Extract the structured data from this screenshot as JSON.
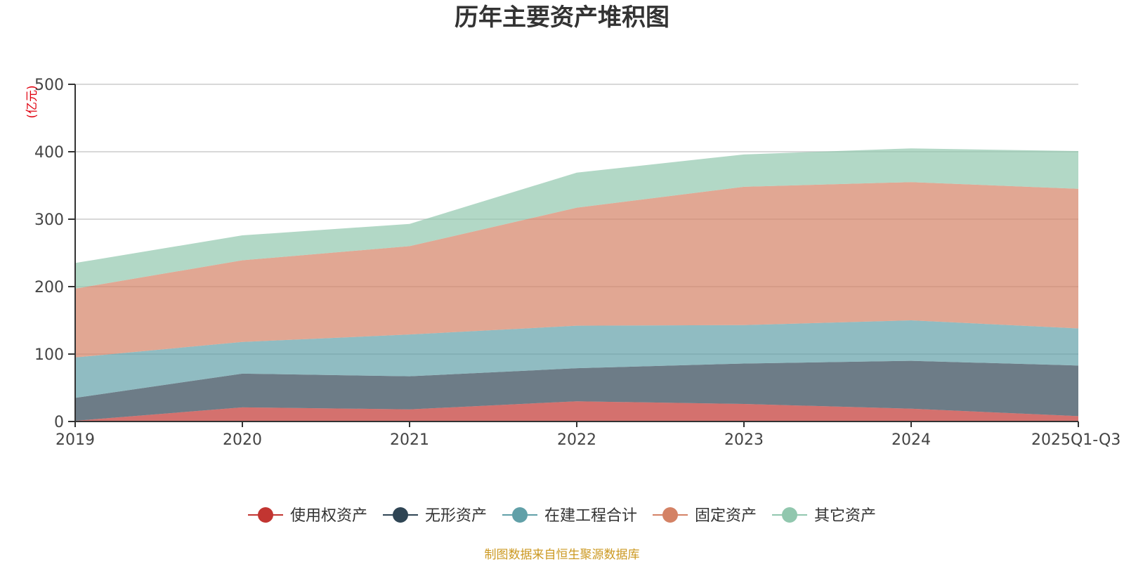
{
  "chart_data": {
    "type": "area",
    "stacked": true,
    "title": "历年主要资产堆积图",
    "unit_label": "(亿元)",
    "categories": [
      "2019",
      "2020",
      "2021",
      "2022",
      "2023",
      "2024",
      "2025Q1-Q3"
    ],
    "ylim": [
      0,
      500
    ],
    "yticks": [
      0,
      100,
      200,
      300,
      400,
      500
    ],
    "grid": true,
    "legend_position": "bottom",
    "series": [
      {
        "name": "使用权资产",
        "color": "#c23531",
        "values": [
          1,
          21,
          18,
          30,
          26,
          19,
          8
        ]
      },
      {
        "name": "无形资产",
        "color": "#2f4554",
        "values": [
          34,
          50,
          49,
          49,
          60,
          71,
          75
        ]
      },
      {
        "name": "在建工程合计",
        "color": "#61a0a8",
        "values": [
          60,
          47,
          62,
          63,
          57,
          60,
          55
        ]
      },
      {
        "name": "固定资产",
        "color": "#d48265",
        "values": [
          102,
          121,
          131,
          175,
          205,
          205,
          207
        ]
      },
      {
        "name": "其它资产",
        "color": "#91c7ae",
        "values": [
          38,
          37,
          33,
          52,
          48,
          50,
          56
        ]
      }
    ]
  },
  "footer": {
    "source": "制图数据来自恒生聚源数据库"
  }
}
